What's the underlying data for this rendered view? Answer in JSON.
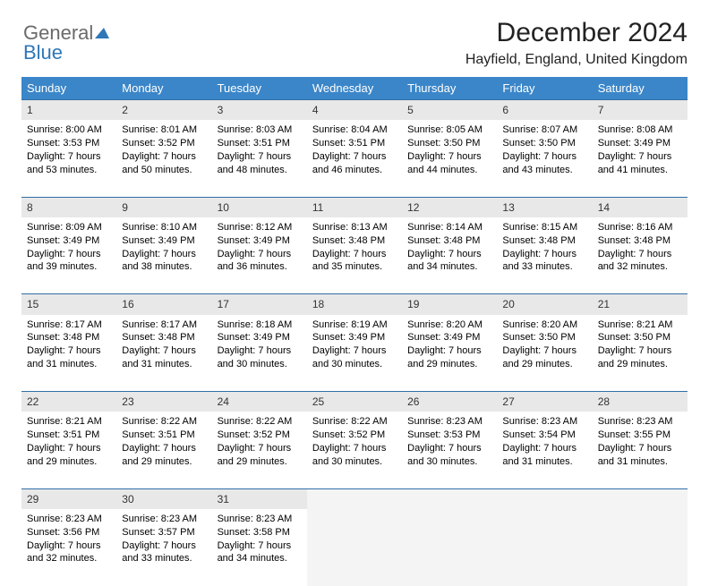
{
  "logo": {
    "part1": "General",
    "part2": "Blue"
  },
  "title": "December 2024",
  "subtitle": "Hayfield, England, United Kingdom",
  "weekdays": [
    "Sunday",
    "Monday",
    "Tuesday",
    "Wednesday",
    "Thursday",
    "Friday",
    "Saturday"
  ],
  "colors": {
    "header_bg": "#3b86c8",
    "header_text": "#ffffff",
    "daynum_bg": "#e8e8e8",
    "rule": "#2f6ea5",
    "logo_gray": "#6a6a6a",
    "logo_blue": "#2f77b7"
  },
  "weeks": [
    [
      {
        "day": "1",
        "sunrise": "Sunrise: 8:00 AM",
        "sunset": "Sunset: 3:53 PM",
        "daylight": "Daylight: 7 hours and 53 minutes."
      },
      {
        "day": "2",
        "sunrise": "Sunrise: 8:01 AM",
        "sunset": "Sunset: 3:52 PM",
        "daylight": "Daylight: 7 hours and 50 minutes."
      },
      {
        "day": "3",
        "sunrise": "Sunrise: 8:03 AM",
        "sunset": "Sunset: 3:51 PM",
        "daylight": "Daylight: 7 hours and 48 minutes."
      },
      {
        "day": "4",
        "sunrise": "Sunrise: 8:04 AM",
        "sunset": "Sunset: 3:51 PM",
        "daylight": "Daylight: 7 hours and 46 minutes."
      },
      {
        "day": "5",
        "sunrise": "Sunrise: 8:05 AM",
        "sunset": "Sunset: 3:50 PM",
        "daylight": "Daylight: 7 hours and 44 minutes."
      },
      {
        "day": "6",
        "sunrise": "Sunrise: 8:07 AM",
        "sunset": "Sunset: 3:50 PM",
        "daylight": "Daylight: 7 hours and 43 minutes."
      },
      {
        "day": "7",
        "sunrise": "Sunrise: 8:08 AM",
        "sunset": "Sunset: 3:49 PM",
        "daylight": "Daylight: 7 hours and 41 minutes."
      }
    ],
    [
      {
        "day": "8",
        "sunrise": "Sunrise: 8:09 AM",
        "sunset": "Sunset: 3:49 PM",
        "daylight": "Daylight: 7 hours and 39 minutes."
      },
      {
        "day": "9",
        "sunrise": "Sunrise: 8:10 AM",
        "sunset": "Sunset: 3:49 PM",
        "daylight": "Daylight: 7 hours and 38 minutes."
      },
      {
        "day": "10",
        "sunrise": "Sunrise: 8:12 AM",
        "sunset": "Sunset: 3:49 PM",
        "daylight": "Daylight: 7 hours and 36 minutes."
      },
      {
        "day": "11",
        "sunrise": "Sunrise: 8:13 AM",
        "sunset": "Sunset: 3:48 PM",
        "daylight": "Daylight: 7 hours and 35 minutes."
      },
      {
        "day": "12",
        "sunrise": "Sunrise: 8:14 AM",
        "sunset": "Sunset: 3:48 PM",
        "daylight": "Daylight: 7 hours and 34 minutes."
      },
      {
        "day": "13",
        "sunrise": "Sunrise: 8:15 AM",
        "sunset": "Sunset: 3:48 PM",
        "daylight": "Daylight: 7 hours and 33 minutes."
      },
      {
        "day": "14",
        "sunrise": "Sunrise: 8:16 AM",
        "sunset": "Sunset: 3:48 PM",
        "daylight": "Daylight: 7 hours and 32 minutes."
      }
    ],
    [
      {
        "day": "15",
        "sunrise": "Sunrise: 8:17 AM",
        "sunset": "Sunset: 3:48 PM",
        "daylight": "Daylight: 7 hours and 31 minutes."
      },
      {
        "day": "16",
        "sunrise": "Sunrise: 8:17 AM",
        "sunset": "Sunset: 3:48 PM",
        "daylight": "Daylight: 7 hours and 31 minutes."
      },
      {
        "day": "17",
        "sunrise": "Sunrise: 8:18 AM",
        "sunset": "Sunset: 3:49 PM",
        "daylight": "Daylight: 7 hours and 30 minutes."
      },
      {
        "day": "18",
        "sunrise": "Sunrise: 8:19 AM",
        "sunset": "Sunset: 3:49 PM",
        "daylight": "Daylight: 7 hours and 30 minutes."
      },
      {
        "day": "19",
        "sunrise": "Sunrise: 8:20 AM",
        "sunset": "Sunset: 3:49 PM",
        "daylight": "Daylight: 7 hours and 29 minutes."
      },
      {
        "day": "20",
        "sunrise": "Sunrise: 8:20 AM",
        "sunset": "Sunset: 3:50 PM",
        "daylight": "Daylight: 7 hours and 29 minutes."
      },
      {
        "day": "21",
        "sunrise": "Sunrise: 8:21 AM",
        "sunset": "Sunset: 3:50 PM",
        "daylight": "Daylight: 7 hours and 29 minutes."
      }
    ],
    [
      {
        "day": "22",
        "sunrise": "Sunrise: 8:21 AM",
        "sunset": "Sunset: 3:51 PM",
        "daylight": "Daylight: 7 hours and 29 minutes."
      },
      {
        "day": "23",
        "sunrise": "Sunrise: 8:22 AM",
        "sunset": "Sunset: 3:51 PM",
        "daylight": "Daylight: 7 hours and 29 minutes."
      },
      {
        "day": "24",
        "sunrise": "Sunrise: 8:22 AM",
        "sunset": "Sunset: 3:52 PM",
        "daylight": "Daylight: 7 hours and 29 minutes."
      },
      {
        "day": "25",
        "sunrise": "Sunrise: 8:22 AM",
        "sunset": "Sunset: 3:52 PM",
        "daylight": "Daylight: 7 hours and 30 minutes."
      },
      {
        "day": "26",
        "sunrise": "Sunrise: 8:23 AM",
        "sunset": "Sunset: 3:53 PM",
        "daylight": "Daylight: 7 hours and 30 minutes."
      },
      {
        "day": "27",
        "sunrise": "Sunrise: 8:23 AM",
        "sunset": "Sunset: 3:54 PM",
        "daylight": "Daylight: 7 hours and 31 minutes."
      },
      {
        "day": "28",
        "sunrise": "Sunrise: 8:23 AM",
        "sunset": "Sunset: 3:55 PM",
        "daylight": "Daylight: 7 hours and 31 minutes."
      }
    ],
    [
      {
        "day": "29",
        "sunrise": "Sunrise: 8:23 AM",
        "sunset": "Sunset: 3:56 PM",
        "daylight": "Daylight: 7 hours and 32 minutes."
      },
      {
        "day": "30",
        "sunrise": "Sunrise: 8:23 AM",
        "sunset": "Sunset: 3:57 PM",
        "daylight": "Daylight: 7 hours and 33 minutes."
      },
      {
        "day": "31",
        "sunrise": "Sunrise: 8:23 AM",
        "sunset": "Sunset: 3:58 PM",
        "daylight": "Daylight: 7 hours and 34 minutes."
      },
      {
        "empty": true
      },
      {
        "empty": true
      },
      {
        "empty": true
      },
      {
        "empty": true
      }
    ]
  ]
}
